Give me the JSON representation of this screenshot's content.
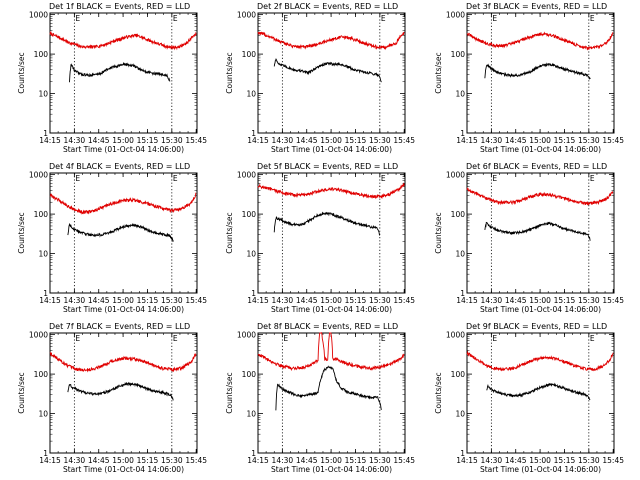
{
  "chart_data": [
    {
      "type": "line",
      "title": "Det 1f BLACK = Events, RED = LLD",
      "xlabel": "Start Time (01-Oct-04 14:06:00)",
      "ylabel": "Counts/sec",
      "x_ticks": [
        "14:15",
        "14:30",
        "14:45",
        "15:00",
        "15:15",
        "15:30",
        "15:45"
      ],
      "y_ticks": [
        "1",
        "10",
        "100",
        "1000"
      ],
      "x_range_min": [
        9,
        99.5
      ],
      "ylim": [
        1,
        1100
      ],
      "y_scale": "log",
      "vlines_min": [
        24,
        84
      ],
      "vline_labels": [
        "E",
        "E"
      ],
      "series": [
        {
          "color": "#e00000",
          "x_min": [
            9,
            20,
            28,
            36,
            43,
            48,
            52,
            56,
            62,
            66,
            71,
            76,
            82,
            88,
            93,
            99
          ],
          "values": [
            330,
            200,
            155,
            150,
            175,
            210,
            240,
            270,
            300,
            260,
            215,
            180,
            150,
            150,
            185,
            330
          ]
        },
        {
          "color": "#000000",
          "x_min": [
            21,
            22,
            24,
            28,
            33,
            36,
            40,
            43,
            47,
            52,
            55,
            60,
            64,
            67,
            72,
            77,
            81,
            83
          ],
          "values": [
            20,
            55,
            38,
            31,
            29,
            30,
            32,
            38,
            46,
            52,
            55,
            52,
            42,
            37,
            33,
            31,
            28,
            20
          ]
        }
      ]
    },
    {
      "type": "line",
      "title": "Det 2f BLACK = Events, RED = LLD",
      "xlabel": "Start Time (01-Oct-04 14:06:00)",
      "ylabel": "Counts/sec",
      "x_ticks": [
        "14:15",
        "14:30",
        "14:45",
        "15:00",
        "15:15",
        "15:30",
        "15:45"
      ],
      "y_ticks": [
        "1",
        "10",
        "100",
        "1000"
      ],
      "x_range_min": [
        9,
        99.5
      ],
      "ylim": [
        1,
        1100
      ],
      "y_scale": "log",
      "vlines_min": [
        24,
        84
      ],
      "vline_labels": [
        "E",
        "E"
      ],
      "series": [
        {
          "color": "#e00000",
          "x_min": [
            9,
            15,
            22,
            30,
            38,
            44,
            50,
            55,
            60,
            65,
            70,
            76,
            82,
            88,
            94,
            99
          ],
          "values": [
            350,
            290,
            210,
            160,
            150,
            170,
            205,
            240,
            270,
            260,
            220,
            180,
            150,
            150,
            190,
            350
          ]
        },
        {
          "color": "#000000",
          "x_min": [
            19,
            20,
            22,
            26,
            31,
            36,
            40,
            43,
            47,
            52,
            56,
            60,
            64,
            68,
            73,
            78,
            83,
            85
          ],
          "values": [
            50,
            75,
            55,
            48,
            40,
            37,
            34,
            40,
            50,
            58,
            56,
            55,
            48,
            40,
            36,
            33,
            30,
            20
          ]
        }
      ]
    },
    {
      "type": "line",
      "title": "Det 3f BLACK = Events, RED = LLD",
      "xlabel": "Start Time (01-Oct-04 14:06:00)",
      "ylabel": "Counts/sec",
      "x_ticks": [
        "14:15",
        "14:30",
        "14:45",
        "15:00",
        "15:15",
        "15:30",
        "15:45"
      ],
      "y_ticks": [
        "1",
        "10",
        "100",
        "1000"
      ],
      "x_range_min": [
        9,
        99.5
      ],
      "ylim": [
        1,
        1100
      ],
      "y_scale": "log",
      "vlines_min": [
        24,
        84
      ],
      "vline_labels": [
        "E",
        "E"
      ],
      "series": [
        {
          "color": "#e00000",
          "x_min": [
            9,
            14,
            20,
            26,
            32,
            38,
            44,
            50,
            55,
            60,
            66,
            72,
            78,
            84,
            90,
            95,
            99
          ],
          "values": [
            330,
            250,
            190,
            165,
            165,
            190,
            240,
            290,
            330,
            310,
            250,
            200,
            160,
            140,
            150,
            190,
            330
          ]
        },
        {
          "color": "#000000",
          "x_min": [
            20,
            21,
            24,
            28,
            33,
            38,
            43,
            48,
            52,
            56,
            60,
            64,
            69,
            74,
            79,
            83,
            85
          ],
          "values": [
            25,
            55,
            42,
            34,
            30,
            28,
            30,
            36,
            46,
            52,
            56,
            50,
            42,
            36,
            32,
            30,
            22
          ]
        }
      ]
    },
    {
      "type": "line",
      "title": "Det 4f BLACK = Events, RED = LLD",
      "xlabel": "Start Time (01-Oct-04 14:06:00)",
      "ylabel": "Counts/sec",
      "x_ticks": [
        "14:15",
        "14:30",
        "14:45",
        "15:00",
        "15:15",
        "15:30",
        "15:45"
      ],
      "y_ticks": [
        "1",
        "10",
        "100",
        "1000"
      ],
      "x_range_min": [
        9,
        99.5
      ],
      "ylim": [
        1,
        1100
      ],
      "y_scale": "log",
      "vlines_min": [
        24,
        84
      ],
      "vline_labels": [
        "E",
        "E"
      ],
      "series": [
        {
          "color": "#e00000",
          "x_min": [
            9,
            14,
            20,
            25,
            30,
            36,
            42,
            48,
            54,
            60,
            66,
            72,
            78,
            84,
            90,
            96,
            99
          ],
          "values": [
            300,
            230,
            160,
            125,
            110,
            120,
            150,
            190,
            220,
            230,
            200,
            170,
            140,
            125,
            135,
            190,
            320
          ]
        },
        {
          "color": "#000000",
          "x_min": [
            20,
            21,
            24,
            28,
            32,
            36,
            41,
            46,
            51,
            56,
            61,
            66,
            70,
            75,
            80,
            83,
            85
          ],
          "values": [
            30,
            55,
            40,
            34,
            31,
            29,
            30,
            34,
            42,
            50,
            52,
            46,
            38,
            33,
            30,
            28,
            20
          ]
        }
      ]
    },
    {
      "type": "line",
      "title": "Det 5f BLACK = Events, RED = LLD",
      "xlabel": "Start Time (01-Oct-04 14:06:00)",
      "ylabel": "Counts/sec",
      "x_ticks": [
        "14:15",
        "14:30",
        "14:45",
        "15:00",
        "15:15",
        "15:30",
        "15:45"
      ],
      "y_ticks": [
        "1",
        "10",
        "100",
        "1000"
      ],
      "x_range_min": [
        9,
        99.5
      ],
      "ylim": [
        1,
        1100
      ],
      "y_scale": "log",
      "vlines_min": [
        24,
        84
      ],
      "vline_labels": [
        "E",
        "E"
      ],
      "series": [
        {
          "color": "#e00000",
          "x_min": [
            9,
            14,
            20,
            26,
            32,
            38,
            44,
            50,
            55,
            60,
            66,
            72,
            78,
            84,
            90,
            96,
            99
          ],
          "values": [
            520,
            460,
            390,
            330,
            300,
            310,
            360,
            410,
            430,
            400,
            350,
            310,
            280,
            280,
            320,
            430,
            560
          ]
        },
        {
          "color": "#000000",
          "x_min": [
            19,
            20,
            22,
            26,
            30,
            34,
            38,
            42,
            46,
            50,
            54,
            58,
            62,
            66,
            70,
            74,
            78,
            82,
            84
          ],
          "values": [
            35,
            80,
            75,
            62,
            55,
            52,
            60,
            75,
            95,
            105,
            100,
            88,
            76,
            65,
            57,
            52,
            48,
            45,
            30
          ]
        }
      ]
    },
    {
      "type": "line",
      "title": "Det 6f BLACK = Events, RED = LLD",
      "xlabel": "Start Time (01-Oct-04 14:06:00)",
      "ylabel": "Counts/sec",
      "x_ticks": [
        "14:15",
        "14:30",
        "14:45",
        "15:00",
        "15:15",
        "15:30",
        "15:45"
      ],
      "y_ticks": [
        "1",
        "10",
        "100",
        "1000"
      ],
      "x_range_min": [
        9,
        99.5
      ],
      "ylim": [
        1,
        1100
      ],
      "y_scale": "log",
      "vlines_min": [
        24,
        84
      ],
      "vline_labels": [
        "E",
        "E"
      ],
      "series": [
        {
          "color": "#e00000",
          "x_min": [
            9,
            14,
            20,
            26,
            32,
            38,
            44,
            50,
            55,
            60,
            66,
            72,
            78,
            84,
            90,
            96,
            99
          ],
          "values": [
            420,
            340,
            260,
            210,
            195,
            200,
            240,
            290,
            320,
            310,
            270,
            230,
            200,
            185,
            200,
            260,
            380
          ]
        },
        {
          "color": "#000000",
          "x_min": [
            20,
            21,
            23,
            27,
            31,
            36,
            41,
            46,
            51,
            56,
            60,
            64,
            68,
            73,
            78,
            83,
            85
          ],
          "values": [
            40,
            60,
            48,
            40,
            36,
            33,
            34,
            38,
            46,
            56,
            58,
            52,
            44,
            38,
            34,
            31,
            22
          ]
        }
      ]
    },
    {
      "type": "line",
      "title": "Det 7f BLACK = Events, RED = LLD",
      "xlabel": "Start Time (01-Oct-04 14:06:00)",
      "ylabel": "Counts/sec",
      "x_ticks": [
        "14:15",
        "14:30",
        "14:45",
        "15:00",
        "15:15",
        "15:30",
        "15:45"
      ],
      "y_ticks": [
        "1",
        "10",
        "100",
        "1000"
      ],
      "x_range_min": [
        9,
        99.5
      ],
      "ylim": [
        1,
        1100
      ],
      "y_scale": "log",
      "vlines_min": [
        24,
        84
      ],
      "vline_labels": [
        "E",
        "E"
      ],
      "series": [
        {
          "color": "#e00000",
          "x_min": [
            9,
            14,
            19,
            24,
            30,
            36,
            42,
            48,
            54,
            60,
            66,
            72,
            78,
            84,
            90,
            96,
            99
          ],
          "values": [
            340,
            240,
            170,
            135,
            125,
            135,
            170,
            220,
            250,
            245,
            210,
            170,
            140,
            130,
            140,
            200,
            330
          ]
        },
        {
          "color": "#000000",
          "x_min": [
            20,
            21,
            23,
            27,
            31,
            36,
            41,
            46,
            51,
            56,
            61,
            66,
            70,
            75,
            80,
            83,
            85
          ],
          "values": [
            35,
            55,
            45,
            38,
            34,
            31,
            32,
            38,
            48,
            56,
            55,
            48,
            40,
            36,
            33,
            30,
            22
          ]
        }
      ]
    },
    {
      "type": "line",
      "title": "Det 8f BLACK = Events, RED = LLD",
      "xlabel": "Start Time (01-Oct-04 14:06:00)",
      "ylabel": "Counts/sec",
      "x_ticks": [
        "14:15",
        "14:30",
        "14:45",
        "15:00",
        "15:15",
        "15:30",
        "15:45"
      ],
      "y_ticks": [
        "1",
        "10",
        "100",
        "1000"
      ],
      "x_range_min": [
        9,
        99.5
      ],
      "ylim": [
        1,
        1100
      ],
      "y_scale": "log",
      "vlines_min": [
        24,
        84
      ],
      "vline_labels": [
        "E",
        "E"
      ],
      "series": [
        {
          "color": "#e00000",
          "x_min": [
            9,
            14,
            19,
            24,
            30,
            36,
            41,
            44,
            46,
            47,
            48,
            50,
            52,
            53,
            54,
            55,
            56,
            58,
            62,
            67,
            72,
            78,
            84,
            90,
            96,
            99
          ],
          "values": [
            320,
            250,
            190,
            160,
            140,
            145,
            170,
            200,
            220,
            1100,
            1100,
            240,
            240,
            1100,
            1100,
            250,
            240,
            230,
            200,
            170,
            150,
            140,
            150,
            175,
            230,
            300
          ]
        },
        {
          "color": "#000000",
          "x_min": [
            20,
            21,
            24,
            28,
            32,
            36,
            40,
            44,
            46,
            48,
            50,
            53,
            55,
            57,
            60,
            64,
            68,
            73,
            78,
            83,
            85
          ],
          "values": [
            12,
            55,
            42,
            35,
            30,
            28,
            30,
            32,
            35,
            80,
            130,
            150,
            145,
            70,
            45,
            35,
            32,
            28,
            26,
            25,
            12
          ]
        }
      ]
    },
    {
      "type": "line",
      "title": "Det 9f BLACK = Events, RED = LLD",
      "xlabel": "Start Time (01-Oct-04 14:06:00)",
      "ylabel": "Counts/sec",
      "x_ticks": [
        "14:15",
        "14:30",
        "14:45",
        "15:00",
        "15:15",
        "15:30",
        "15:45"
      ],
      "y_ticks": [
        "1",
        "10",
        "100",
        "1000"
      ],
      "x_range_min": [
        9,
        99.5
      ],
      "ylim": [
        1,
        1100
      ],
      "y_scale": "log",
      "vlines_min": [
        24,
        84
      ],
      "vline_labels": [
        "E",
        "E"
      ],
      "series": [
        {
          "color": "#e00000",
          "x_min": [
            9,
            14,
            20,
            26,
            32,
            38,
            44,
            50,
            56,
            62,
            68,
            74,
            80,
            86,
            92,
            97,
            99
          ],
          "values": [
            340,
            250,
            170,
            140,
            130,
            140,
            180,
            230,
            260,
            250,
            210,
            170,
            140,
            130,
            150,
            220,
            340
          ]
        },
        {
          "color": "#000000",
          "x_min": [
            21,
            22,
            24,
            28,
            33,
            38,
            43,
            48,
            53,
            58,
            62,
            66,
            71,
            76,
            81,
            83,
            85
          ],
          "values": [
            40,
            50,
            40,
            34,
            30,
            28,
            30,
            35,
            44,
            52,
            54,
            48,
            40,
            35,
            31,
            28,
            22
          ]
        }
      ]
    }
  ]
}
